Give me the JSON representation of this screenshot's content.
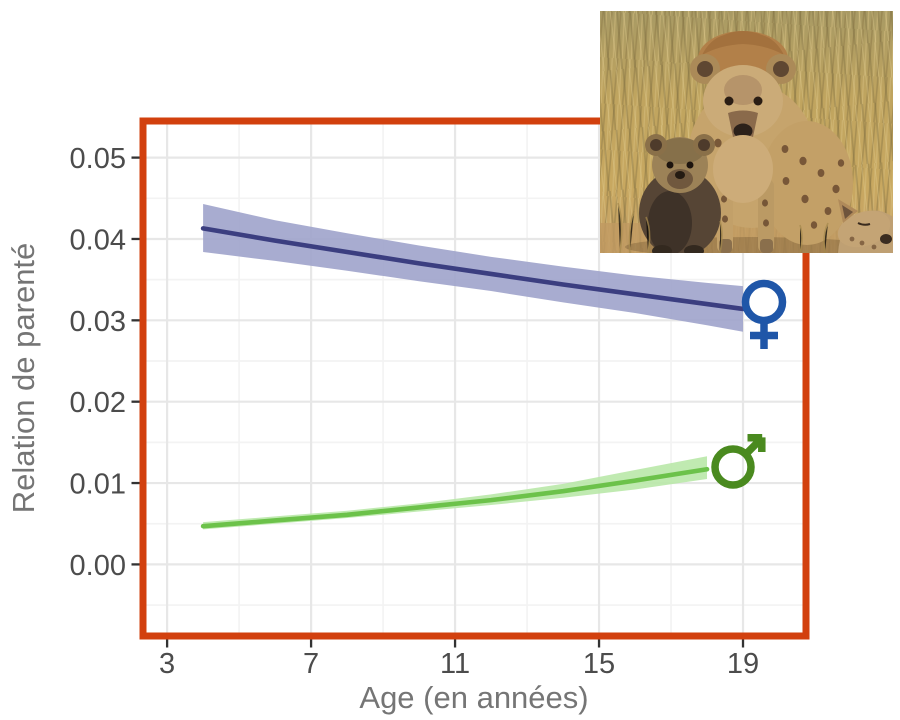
{
  "chart_data": {
    "type": "line",
    "title": "",
    "xlabel": "Age (en années)",
    "ylabel": "Relation de parenté",
    "xlim": [
      2.33,
      20.75
    ],
    "ylim": [
      -0.0088,
      0.0545
    ],
    "x_ticks": [
      3,
      7,
      11,
      15,
      19
    ],
    "x_minor_ticks": [
      5,
      9,
      13,
      17
    ],
    "y_ticks": [
      0.0,
      0.01,
      0.02,
      0.03,
      0.04,
      0.05
    ],
    "y_tick_labels": [
      "0.00",
      "0.01",
      "0.02",
      "0.03",
      "0.04",
      "0.05"
    ],
    "y_minor_ticks": [
      -0.005,
      0.005,
      0.015,
      0.025,
      0.035,
      0.045
    ],
    "grid": true,
    "legend_position": "symbols-at-line-ends",
    "series": [
      {
        "name": "femelles",
        "symbol": "♀",
        "symbol_color": "#1f56a8",
        "line_color": "#3b3e80",
        "ribbon_color": "#9fa3cb",
        "x": [
          4,
          6,
          8,
          10,
          12,
          14,
          16,
          18,
          19
        ],
        "y": [
          0.0413,
          0.0398,
          0.0384,
          0.037,
          0.0357,
          0.0344,
          0.0332,
          0.032,
          0.0314
        ],
        "y_hi": [
          0.0443,
          0.0423,
          0.0407,
          0.0392,
          0.0378,
          0.0366,
          0.0355,
          0.0346,
          0.0342
        ],
        "y_lo": [
          0.0384,
          0.0373,
          0.0361,
          0.0348,
          0.0336,
          0.0322,
          0.0309,
          0.0294,
          0.0286
        ]
      },
      {
        "name": "mâles",
        "symbol": "♂",
        "symbol_color": "#4a8a1f",
        "line_color": "#6cc24a",
        "ribbon_color": "#b9e8a8",
        "x": [
          4,
          6,
          8,
          10,
          12,
          14,
          16,
          18
        ],
        "y": [
          0.0047,
          0.0054,
          0.0061,
          0.007,
          0.0079,
          0.009,
          0.0103,
          0.0117
        ],
        "y_hi": [
          0.0052,
          0.0059,
          0.0066,
          0.0075,
          0.0086,
          0.0099,
          0.0116,
          0.0133
        ],
        "y_lo": [
          0.0043,
          0.005,
          0.0057,
          0.0065,
          0.0073,
          0.0082,
          0.0092,
          0.0105
        ]
      }
    ]
  },
  "colors": {
    "frame": "#d2400e",
    "tick_mark": "#333333",
    "tick_text": "#4c4c4c",
    "axis_title_text": "#757575",
    "grid_major": "#e7e7e7",
    "grid_minor": "#f3f3f3",
    "background": "#ffffff"
  },
  "photo": {
    "name": "hyena-family-photo"
  }
}
